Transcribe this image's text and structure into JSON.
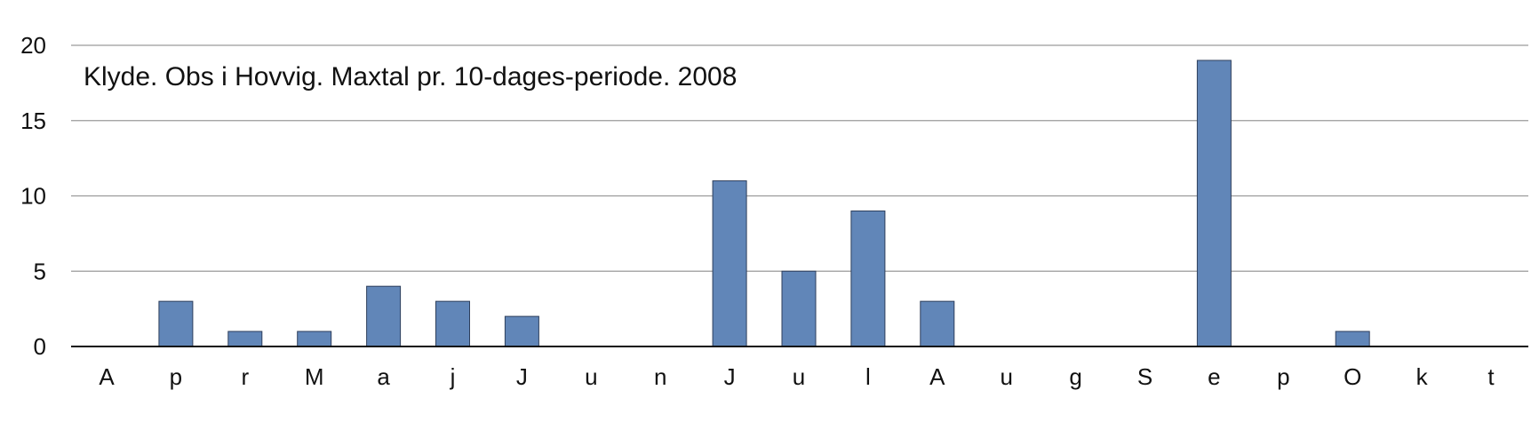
{
  "chart_data": {
    "type": "bar",
    "title": "Klyde. Obs i Hovvig. Maxtal pr. 10-dages-periode. 2008",
    "xlabel": "",
    "ylabel": "",
    "ylim": [
      0,
      20
    ],
    "yticks": [
      "0",
      "5",
      "10",
      "15",
      "20"
    ],
    "grid": true,
    "legend": "none",
    "bar_color": "#6186B8",
    "categories": [
      "A",
      "p",
      "r",
      "M",
      "a",
      "j",
      "J",
      "u",
      "n",
      "J",
      "u",
      "l",
      "A",
      "u",
      "g",
      "S",
      "e",
      "p",
      "O",
      "k",
      "t"
    ],
    "values": [
      0,
      3,
      1,
      1,
      4,
      3,
      2,
      0,
      0,
      11,
      5,
      9,
      3,
      0,
      0,
      0,
      19,
      0,
      1,
      0,
      0
    ]
  }
}
